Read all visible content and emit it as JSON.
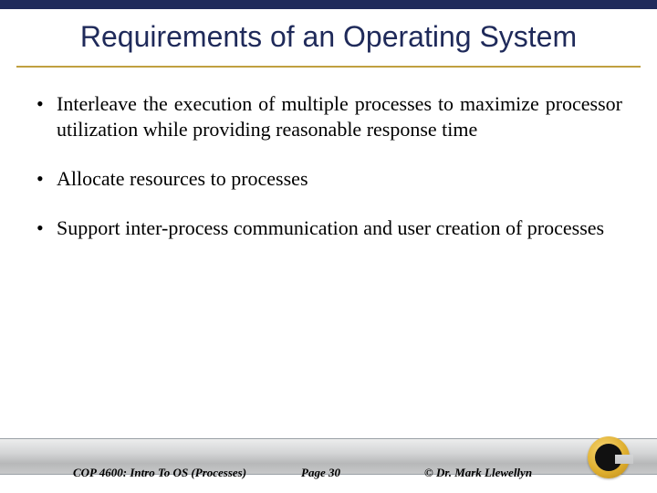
{
  "colors": {
    "navy": "#1f2a5a",
    "gold": "#c0a040",
    "text": "#000000",
    "background": "#ffffff",
    "footer_gradient_top": "#eceded",
    "footer_gradient_bottom": "#c7c8c9"
  },
  "typography": {
    "title_font": "Arial",
    "title_size_pt": 24,
    "body_font": "Times New Roman",
    "body_size_pt": 17,
    "footer_size_pt": 10
  },
  "title": "Requirements of an Operating System",
  "bullets": [
    "Interleave the execution of multiple processes to maximize processor utilization while providing reasonable response time",
    "Allocate resources to processes",
    "Support inter-process communication and user creation of processes"
  ],
  "footer": {
    "course": "COP 4600: Intro To OS  (Processes)",
    "page": "Page 30",
    "author": "© Dr. Mark Llewellyn"
  }
}
